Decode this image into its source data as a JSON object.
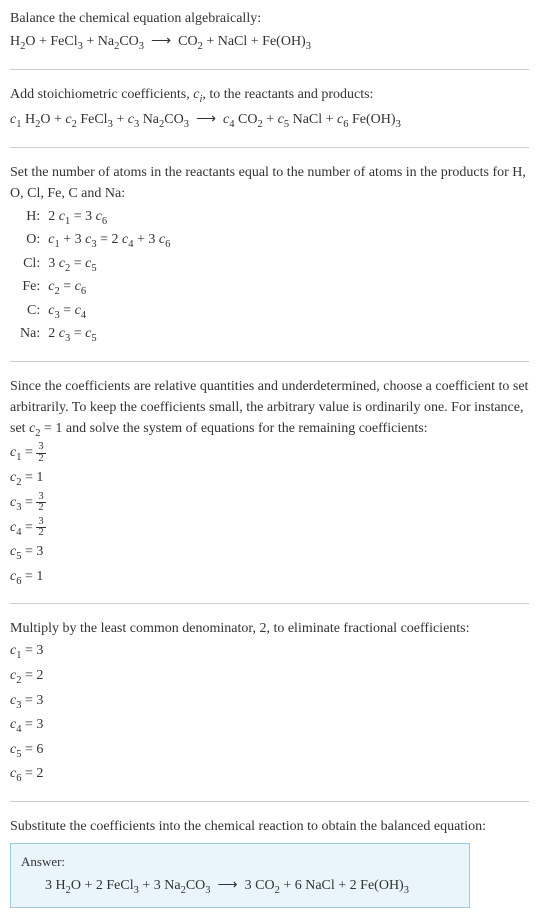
{
  "section1": {
    "intro": "Balance the chemical equation algebraically:",
    "equation_html": "H<sub>2</sub>O + FeCl<sub>3</sub> + Na<sub>2</sub>CO<sub>3</sub> &nbsp;⟶&nbsp; CO<sub>2</sub> + NaCl + Fe(OH)<sub>3</sub>"
  },
  "section2": {
    "intro_html": "Add stoichiometric coefficients, <span class=\"italic\">c<sub>i</sub></span>, to the reactants and products:",
    "equation_html": "<span class=\"italic\">c</span><sub>1</sub> H<sub>2</sub>O + <span class=\"italic\">c</span><sub>2</sub> FeCl<sub>3</sub> + <span class=\"italic\">c</span><sub>3</sub> Na<sub>2</sub>CO<sub>3</sub> &nbsp;⟶&nbsp; <span class=\"italic\">c</span><sub>4</sub> CO<sub>2</sub> + <span class=\"italic\">c</span><sub>5</sub> NaCl + <span class=\"italic\">c</span><sub>6</sub> Fe(OH)<sub>3</sub>"
  },
  "section3": {
    "intro": "Set the number of atoms in the reactants equal to the number of atoms in the products for H, O, Cl, Fe, C and Na:",
    "rows": [
      {
        "label": "H:",
        "eq_html": "2 <span class=\"italic\">c</span><sub>1</sub> = 3 <span class=\"italic\">c</span><sub>6</sub>"
      },
      {
        "label": "O:",
        "eq_html": "<span class=\"italic\">c</span><sub>1</sub> + 3 <span class=\"italic\">c</span><sub>3</sub> = 2 <span class=\"italic\">c</span><sub>4</sub> + 3 <span class=\"italic\">c</span><sub>6</sub>"
      },
      {
        "label": "Cl:",
        "eq_html": "3 <span class=\"italic\">c</span><sub>2</sub> = <span class=\"italic\">c</span><sub>5</sub>"
      },
      {
        "label": "Fe:",
        "eq_html": "<span class=\"italic\">c</span><sub>2</sub> = <span class=\"italic\">c</span><sub>6</sub>"
      },
      {
        "label": "C:",
        "eq_html": "<span class=\"italic\">c</span><sub>3</sub> = <span class=\"italic\">c</span><sub>4</sub>"
      },
      {
        "label": "Na:",
        "eq_html": "2 <span class=\"italic\">c</span><sub>3</sub> = <span class=\"italic\">c</span><sub>5</sub>"
      }
    ]
  },
  "section4": {
    "intro_html": "Since the coefficients are relative quantities and underdetermined, choose a coefficient to set arbitrarily. To keep the coefficients small, the arbitrary value is ordinarily one. For instance, set <span class=\"italic\">c</span><sub>2</sub> = 1 and solve the system of equations for the remaining coefficients:",
    "lines": [
      {
        "html": "<span class=\"italic\">c</span><sub>1</sub> = <span class=\"frac\"><span class=\"num\">3</span><span class=\"den\">2</span></span>"
      },
      {
        "html": "<span class=\"italic\">c</span><sub>2</sub> = 1"
      },
      {
        "html": "<span class=\"italic\">c</span><sub>3</sub> = <span class=\"frac\"><span class=\"num\">3</span><span class=\"den\">2</span></span>"
      },
      {
        "html": "<span class=\"italic\">c</span><sub>4</sub> = <span class=\"frac\"><span class=\"num\">3</span><span class=\"den\">2</span></span>"
      },
      {
        "html": "<span class=\"italic\">c</span><sub>5</sub> = 3"
      },
      {
        "html": "<span class=\"italic\">c</span><sub>6</sub> = 1"
      }
    ]
  },
  "section5": {
    "intro": "Multiply by the least common denominator, 2, to eliminate fractional coefficients:",
    "lines": [
      {
        "html": "<span class=\"italic\">c</span><sub>1</sub> = 3"
      },
      {
        "html": "<span class=\"italic\">c</span><sub>2</sub> = 2"
      },
      {
        "html": "<span class=\"italic\">c</span><sub>3</sub> = 3"
      },
      {
        "html": "<span class=\"italic\">c</span><sub>4</sub> = 3"
      },
      {
        "html": "<span class=\"italic\">c</span><sub>5</sub> = 6"
      },
      {
        "html": "<span class=\"italic\">c</span><sub>6</sub> = 2"
      }
    ]
  },
  "section6": {
    "intro": "Substitute the coefficients into the chemical reaction to obtain the balanced equation:",
    "answer_label": "Answer:",
    "answer_html": "3 H<sub>2</sub>O + 2 FeCl<sub>3</sub> + 3 Na<sub>2</sub>CO<sub>3</sub> &nbsp;⟶&nbsp; 3 CO<sub>2</sub> + 6 NaCl + 2 Fe(OH)<sub>3</sub>"
  },
  "colors": {
    "text": "#333333",
    "divider": "#cccccc",
    "answer_border": "#a0c8e0",
    "answer_bg": "#eaf4fb"
  }
}
